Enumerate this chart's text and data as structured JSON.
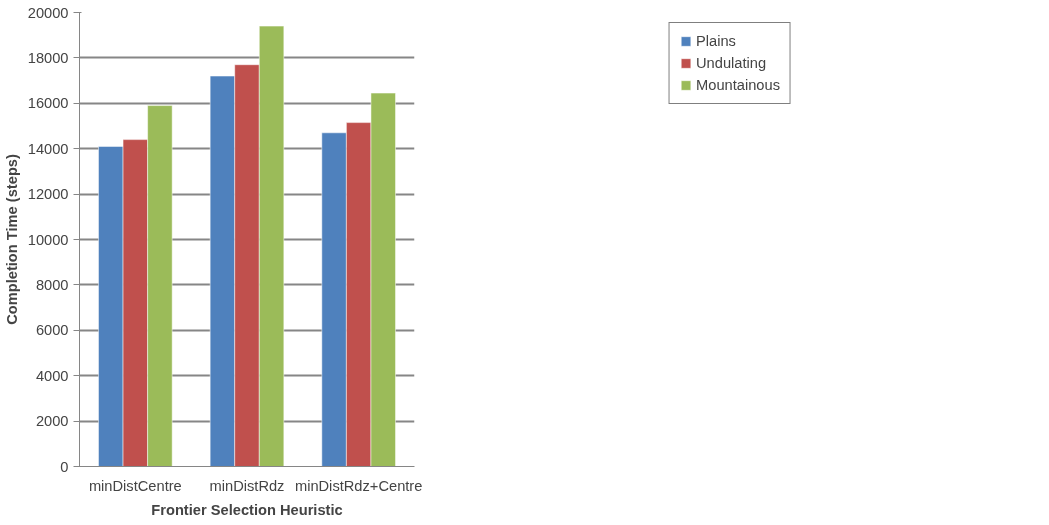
{
  "chart_data": {
    "type": "bar",
    "xlabel": "Frontier Selection Heuristic",
    "ylabel": "Completion Time (steps)",
    "categories": [
      "minDistCentre",
      "minDistRdz",
      "minDistRdz+Centre"
    ],
    "series": [
      {
        "name": "Plains",
        "color": "#4f81bd",
        "values": [
          14100,
          17200,
          14700
        ]
      },
      {
        "name": "Undulating",
        "color": "#c0504d",
        "values": [
          14400,
          17700,
          15150
        ]
      },
      {
        "name": "Mountainous",
        "color": "#9bbb59",
        "values": [
          15900,
          19400,
          16450
        ]
      }
    ],
    "ylim": [
      0,
      20000
    ],
    "yticks": [
      0,
      2000,
      4000,
      6000,
      8000,
      10000,
      12000,
      14000,
      16000,
      18000,
      20000
    ],
    "grid": "y",
    "legend": "top right"
  }
}
